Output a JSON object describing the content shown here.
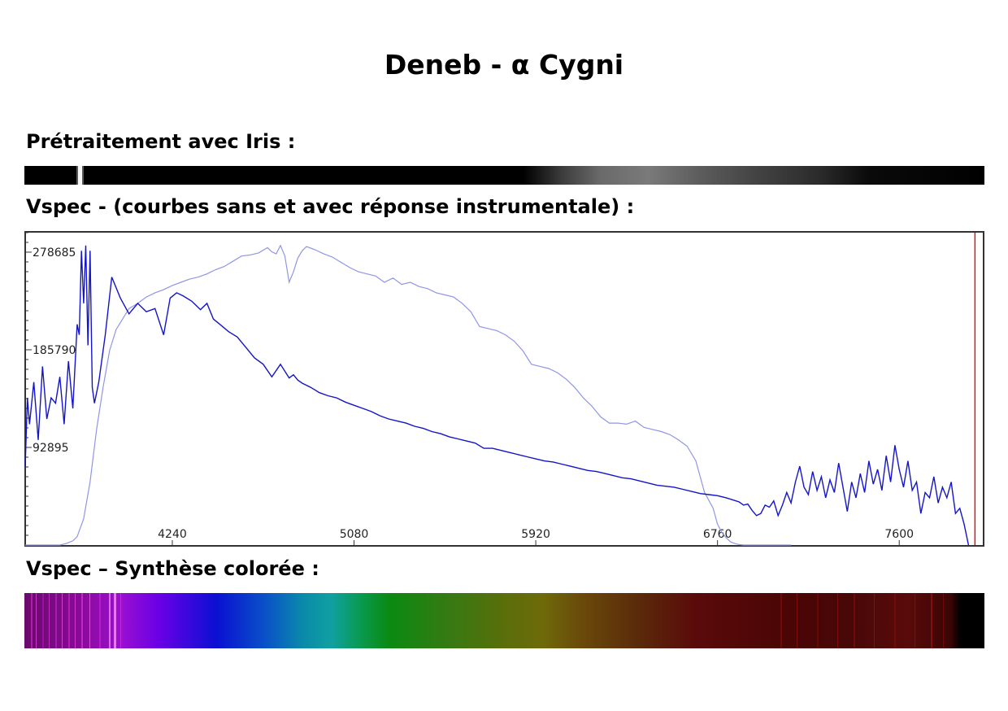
{
  "page": {
    "title": "Deneb - α Cygni",
    "section_iris": "Prétraitement avec Iris :",
    "section_vspec": "Vspec - (courbes sans et avec réponse instrumentale) :",
    "section_synthese": "Vspec – Synthèse colorée :"
  },
  "colors": {
    "raw_curve": "#1414c8",
    "corrected_curve": "#8f96e6",
    "marker_line": "#d01818",
    "frame": "#333333"
  },
  "chart_data": {
    "type": "line",
    "title": "",
    "xlabel": "",
    "ylabel": "",
    "x_ticks": [
      4240,
      5080,
      5920,
      6760,
      7600
    ],
    "y_ticks": [
      92895,
      185790,
      278685
    ],
    "x_tick_labels": [
      "4240",
      "5080",
      "5920",
      "6760",
      "7600"
    ],
    "y_tick_labels": [
      "92895",
      "185790",
      "278685"
    ],
    "xlim": [
      3560,
      7990
    ],
    "ylim": [
      0,
      298000
    ],
    "marker_x": 7950,
    "grid": false,
    "legend": "none",
    "series": [
      {
        "x": [
          3560,
          3570,
          3580,
          3600,
          3620,
          3640,
          3660,
          3680,
          3700,
          3720,
          3740,
          3760,
          3780,
          3800,
          3810,
          3820,
          3830,
          3840,
          3850,
          3860,
          3870,
          3880,
          3900,
          3930,
          3960,
          4000,
          4040,
          4080,
          4120,
          4160,
          4200,
          4230,
          4260,
          4290,
          4330,
          4370,
          4400,
          4430,
          4460,
          4500,
          4540,
          4580,
          4620,
          4660,
          4700,
          4740,
          4780,
          4800,
          4820,
          4840,
          4860,
          4880,
          4920,
          4960,
          5000,
          5040,
          5080,
          5120,
          5160,
          5200,
          5240,
          5280,
          5320,
          5360,
          5400,
          5440,
          5480,
          5520,
          5560,
          5600,
          5640,
          5680,
          5720,
          5760,
          5800,
          5840,
          5880,
          5920,
          5960,
          6000,
          6040,
          6080,
          6120,
          6160,
          6200,
          6240,
          6280,
          6320,
          6360,
          6400,
          6440,
          6480,
          6520,
          6560,
          6600,
          6640,
          6680,
          6720,
          6760,
          6800,
          6830,
          6860,
          6880,
          6900,
          6920,
          6940,
          6960,
          6980,
          7000,
          7020,
          7040,
          7060,
          7080,
          7100,
          7120,
          7140,
          7160,
          7180,
          7200,
          7220,
          7240,
          7260,
          7280,
          7300,
          7320,
          7340,
          7360,
          7380,
          7400,
          7420,
          7440,
          7460,
          7480,
          7500,
          7520,
          7540,
          7560,
          7580,
          7600,
          7620,
          7640,
          7660,
          7680,
          7700,
          7720,
          7740,
          7760,
          7780,
          7800,
          7820,
          7840,
          7860,
          7880,
          7900,
          7920
        ],
        "y": [
          75000,
          140000,
          115000,
          155000,
          100000,
          170000,
          120000,
          140000,
          135000,
          160000,
          115000,
          175000,
          130000,
          210000,
          200000,
          280000,
          230000,
          285000,
          190000,
          280000,
          150000,
          135000,
          155000,
          200000,
          255000,
          235000,
          220000,
          230000,
          222000,
          225000,
          200000,
          235000,
          240000,
          237000,
          232000,
          224000,
          230000,
          215000,
          210000,
          203000,
          198000,
          188000,
          178000,
          172000,
          160000,
          172000,
          159000,
          162000,
          157000,
          154000,
          152000,
          150000,
          145000,
          142000,
          140000,
          136000,
          133000,
          130000,
          127000,
          123000,
          120000,
          118000,
          116000,
          113000,
          111000,
          108000,
          106000,
          103000,
          101000,
          99000,
          97000,
          92000,
          92000,
          90000,
          88000,
          86000,
          84000,
          82000,
          80000,
          79000,
          77000,
          75000,
          73000,
          71000,
          70000,
          68000,
          66000,
          64000,
          63000,
          61000,
          59000,
          57000,
          56000,
          55000,
          53000,
          51000,
          49000,
          48000,
          47000,
          45000,
          43000,
          41000,
          38000,
          39000,
          33000,
          28000,
          30000,
          38000,
          36000,
          42000,
          28000,
          38000,
          50000,
          40000,
          60000,
          75000,
          55000,
          48000,
          70000,
          52000,
          65000,
          45000,
          62000,
          50000,
          78000,
          55000,
          32000,
          60000,
          45000,
          68000,
          50000,
          80000,
          58000,
          72000,
          52000,
          85000,
          60000,
          95000,
          72000,
          55000,
          80000,
          52000,
          60000,
          30000,
          50000,
          45000,
          65000,
          40000,
          55000,
          45000,
          60000,
          30000,
          35000,
          20000,
          0
        ]
      },
      {
        "x": [
          3560,
          3620,
          3680,
          3720,
          3750,
          3780,
          3800,
          3830,
          3860,
          3890,
          3920,
          3950,
          3980,
          4010,
          4040,
          4080,
          4120,
          4160,
          4200,
          4240,
          4280,
          4320,
          4360,
          4400,
          4440,
          4480,
          4520,
          4560,
          4600,
          4640,
          4680,
          4700,
          4720,
          4740,
          4760,
          4780,
          4800,
          4820,
          4840,
          4860,
          4900,
          4940,
          4980,
          5020,
          5060,
          5100,
          5140,
          5180,
          5220,
          5260,
          5300,
          5340,
          5380,
          5420,
          5460,
          5500,
          5540,
          5580,
          5620,
          5660,
          5700,
          5740,
          5780,
          5820,
          5860,
          5900,
          5940,
          5980,
          6020,
          6060,
          6100,
          6140,
          6180,
          6220,
          6260,
          6300,
          6340,
          6380,
          6420,
          6460,
          6500,
          6540,
          6580,
          6620,
          6660,
          6700,
          6740,
          6760,
          6780,
          6800,
          6820,
          6840,
          6860,
          6880,
          6900,
          6920,
          6940,
          6960,
          6980,
          7000,
          7040,
          7100
        ],
        "y": [
          0,
          0,
          0,
          0,
          1500,
          4000,
          8000,
          25000,
          60000,
          110000,
          150000,
          185000,
          205000,
          215000,
          225000,
          230000,
          236000,
          240000,
          243000,
          247000,
          250000,
          253000,
          255000,
          258000,
          262000,
          265000,
          270000,
          275000,
          276000,
          278000,
          283000,
          279000,
          277000,
          285000,
          275000,
          250000,
          260000,
          273000,
          280000,
          284000,
          281000,
          277000,
          274000,
          269000,
          264000,
          260000,
          258000,
          256000,
          250000,
          254000,
          248000,
          250000,
          246000,
          244000,
          240000,
          238000,
          236000,
          230000,
          222000,
          208000,
          206000,
          204000,
          200000,
          194000,
          185000,
          172000,
          170000,
          168000,
          164000,
          158000,
          150000,
          140000,
          132000,
          122000,
          116000,
          116000,
          115000,
          118000,
          112000,
          110000,
          108000,
          105000,
          100000,
          94000,
          80000,
          50000,
          35000,
          20000,
          12000,
          7000,
          3000,
          1500,
          500,
          0,
          0,
          0,
          0,
          0,
          0,
          0,
          0,
          0
        ]
      }
    ]
  }
}
